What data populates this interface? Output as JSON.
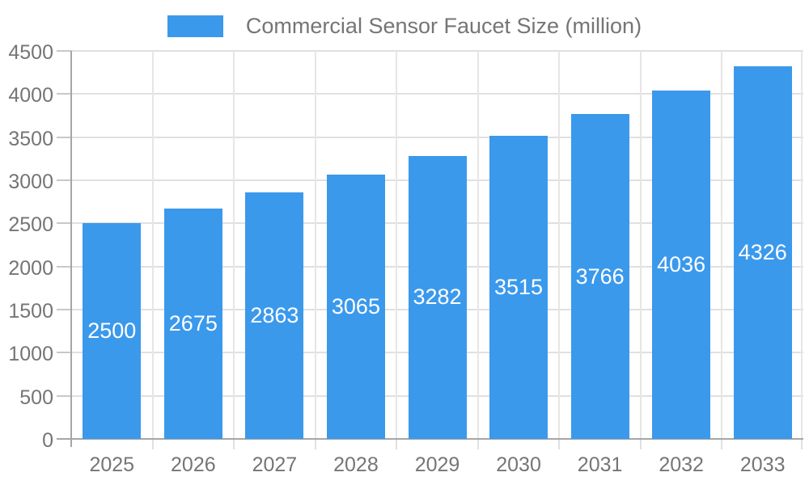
{
  "legend": {
    "label": "Commercial Sensor Faucet Size (million)"
  },
  "colors": {
    "background": "#FFFFFF",
    "bar": "#3B99EC",
    "bar_label": "#FFFFFF",
    "axis_text": "#757575",
    "axis_line": "#A6A6A6",
    "grid_h": "#E0E0E0",
    "grid_v": "#E6E6E6",
    "tick_y": "#C8C8C8",
    "tick_x": "#E0E0E0"
  },
  "chart_data": {
    "type": "bar",
    "title": "Commercial Sensor Faucet Size (million)",
    "categories": [
      "2025",
      "2026",
      "2027",
      "2028",
      "2029",
      "2030",
      "2031",
      "2032",
      "2033"
    ],
    "values": [
      2500,
      2675,
      2863,
      3065,
      3282,
      3515,
      3766,
      4036,
      4326
    ],
    "series": [
      {
        "name": "Commercial Sensor Faucet Size (million)",
        "values": [
          2500,
          2675,
          2863,
          3065,
          3282,
          3515,
          3766,
          4036,
          4326
        ]
      }
    ],
    "xlabel": "",
    "ylabel": "",
    "ylim": [
      0,
      4500
    ],
    "yticks": [
      0,
      500,
      1000,
      1500,
      2000,
      2500,
      3000,
      3500,
      4000,
      4500
    ],
    "grid": true,
    "grid_style": "horizontal gridlines at each y tick plus vertical gridlines at category boundaries",
    "legend_position": "top-center",
    "value_labels": "white, centered vertically inside each bar"
  }
}
